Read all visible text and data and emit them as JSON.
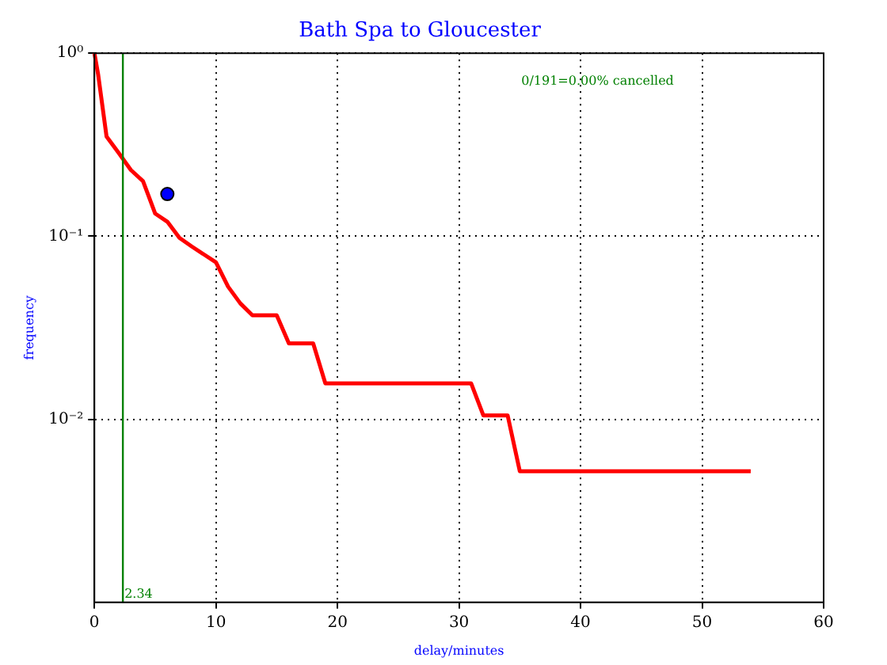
{
  "chart_data": {
    "type": "line",
    "title": "Bath Spa to Gloucester",
    "xlabel": "delay/minutes",
    "ylabel": "frequency",
    "log": "y",
    "grid": true,
    "xlim": [
      0,
      60
    ],
    "xticks": [
      0,
      10,
      20,
      30,
      40,
      50,
      60
    ],
    "ylim": [
      0.001,
      1
    ],
    "yticks": [
      {
        "value": 1,
        "label": "10⁰"
      },
      {
        "value": 0.1,
        "label": "10⁻¹"
      },
      {
        "value": 0.01,
        "label": "10⁻²"
      }
    ],
    "series": [
      {
        "color": "#ff0000",
        "line_style": "solid",
        "marker": "none",
        "x": [
          0,
          0.3,
          1,
          2,
          3,
          4,
          5,
          6,
          7,
          8,
          10,
          11,
          12,
          13,
          15,
          16,
          18,
          19,
          31,
          32,
          34,
          35,
          54
        ],
        "values": [
          1.0,
          0.77,
          0.35,
          0.285,
          0.23,
          0.2,
          0.133,
          0.12,
          0.098,
          0.088,
          0.072,
          0.053,
          0.043,
          0.037,
          0.037,
          0.026,
          0.026,
          0.0157,
          0.0157,
          0.0105,
          0.0105,
          0.0052,
          0.0052
        ]
      },
      {
        "type": "scatter",
        "color": "#0000ff",
        "marker": "circle",
        "x": [
          6
        ],
        "values": [
          0.17
        ]
      }
    ],
    "ref_lines": [
      {
        "axis": "x",
        "value": 2.34,
        "label": "2.34",
        "color": "#008000",
        "line_style": "solid"
      }
    ],
    "annotations": [
      "0/191=0.00% cancelled"
    ]
  }
}
